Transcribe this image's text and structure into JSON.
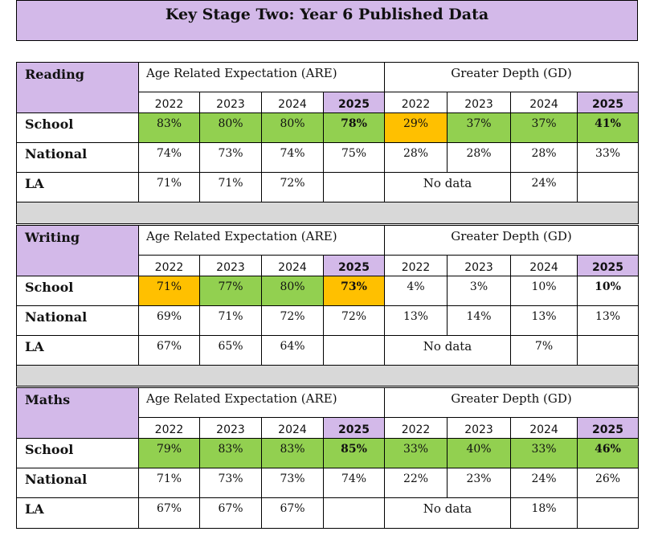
{
  "title": "Key Stage Two: Year 6 Published Data",
  "colors": {
    "lilac": "#d3b9e9",
    "green": "#92d050",
    "amber": "#ffc000",
    "spacer": "#d8d8d8"
  },
  "headers": {
    "are": "Age Related Expectation (ARE)",
    "gd": "Greater Depth (GD)",
    "years": [
      "2022",
      "2023",
      "2024",
      "2025"
    ]
  },
  "row_labels": {
    "school": "School",
    "national": "National",
    "la": "LA"
  },
  "no_data": "No data",
  "sections": [
    {
      "subject": "Reading",
      "school": {
        "are": [
          "83%",
          "80%",
          "80%",
          "78%"
        ],
        "gd": [
          "29%",
          "37%",
          "37%",
          "41%"
        ],
        "are_status": [
          "green",
          "green",
          "green",
          "green"
        ],
        "gd_status": [
          "amber",
          "green",
          "green",
          "green"
        ]
      },
      "national": {
        "are": [
          "74%",
          "73%",
          "74%",
          "75%"
        ],
        "gd": [
          "28%",
          "28%",
          "28%",
          "33%"
        ]
      },
      "la": {
        "are": [
          "71%",
          "71%",
          "72%",
          ""
        ],
        "gd_2024": "24%"
      }
    },
    {
      "subject": "Writing",
      "school": {
        "are": [
          "71%",
          "77%",
          "80%",
          "73%"
        ],
        "gd": [
          "4%",
          "3%",
          "10%",
          "10%"
        ],
        "are_status": [
          "amber",
          "green",
          "green",
          "amber"
        ],
        "gd_status": [
          "none",
          "none",
          "none",
          "none"
        ]
      },
      "national": {
        "are": [
          "69%",
          "71%",
          "72%",
          "72%"
        ],
        "gd": [
          "13%",
          "14%",
          "13%",
          "13%"
        ]
      },
      "la": {
        "are": [
          "67%",
          "65%",
          "64%",
          ""
        ],
        "gd_2024": "7%"
      }
    },
    {
      "subject": "Maths",
      "school": {
        "are": [
          "79%",
          "83%",
          "83%",
          "85%"
        ],
        "gd": [
          "33%",
          "40%",
          "33%",
          "46%"
        ],
        "are_status": [
          "green",
          "green",
          "green",
          "green"
        ],
        "gd_status": [
          "green",
          "green",
          "green",
          "green"
        ]
      },
      "national": {
        "are": [
          "71%",
          "73%",
          "73%",
          "74%"
        ],
        "gd": [
          "22%",
          "23%",
          "24%",
          "26%"
        ]
      },
      "la": {
        "are": [
          "67%",
          "67%",
          "67%",
          ""
        ],
        "gd_2024": "18%"
      }
    }
  ]
}
